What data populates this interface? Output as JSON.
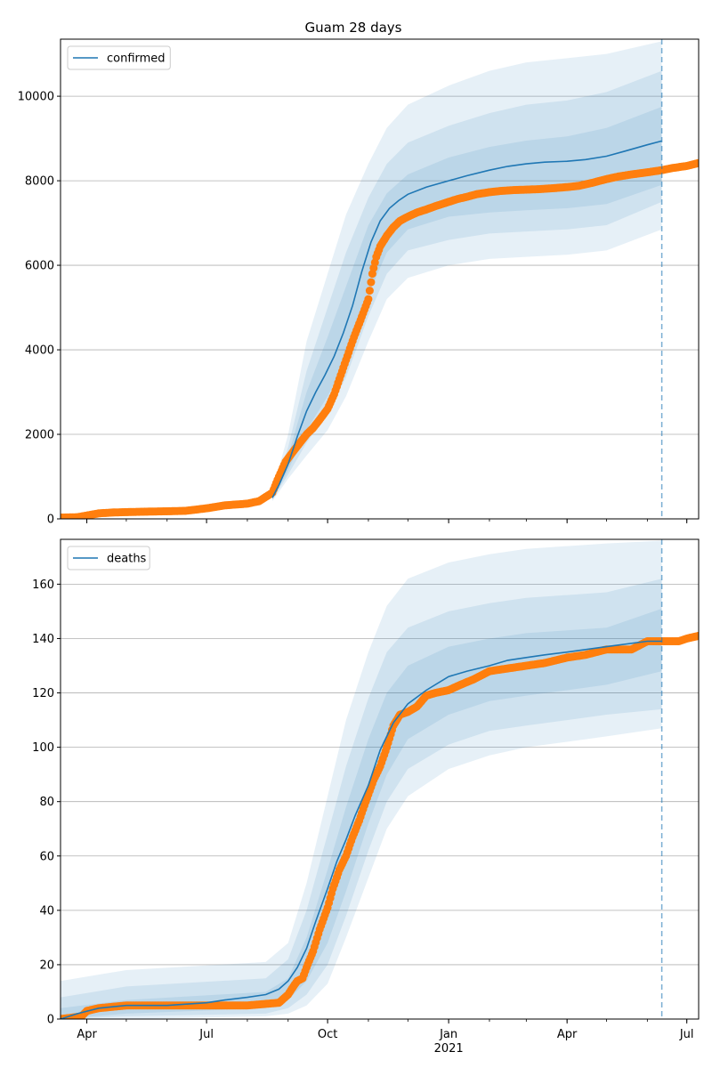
{
  "title": "Guam 28 days",
  "colors": {
    "model": "#1f77b4",
    "observed": "#ff7f0e",
    "band": "#1f77b4",
    "grid": "#b0b0b0",
    "axis": "#000000",
    "cutoff": "#1f77b4"
  },
  "chart_data": [
    {
      "type": "line",
      "legend": "confirmed",
      "legend_position": "top-left",
      "grid": "y",
      "xlim": [
        "2020-03-12",
        "2021-07-10"
      ],
      "ylim": [
        0,
        11350
      ],
      "yticks": [
        0,
        2000,
        4000,
        6000,
        8000,
        10000
      ],
      "cutoff_date": "2021-06-12",
      "model_line": {
        "x": [
          "2020-08-20",
          "2020-08-25",
          "2020-09-01",
          "2020-09-08",
          "2020-09-15",
          "2020-09-22",
          "2020-09-29",
          "2020-10-06",
          "2020-10-13",
          "2020-10-20",
          "2020-10-27",
          "2020-11-03",
          "2020-11-10",
          "2020-11-17",
          "2020-11-24",
          "2020-12-01",
          "2020-12-15",
          "2021-01-01",
          "2021-01-15",
          "2021-02-01",
          "2021-02-15",
          "2021-03-01",
          "2021-03-15",
          "2021-04-01",
          "2021-04-15",
          "2021-05-01",
          "2021-05-15",
          "2021-06-01",
          "2021-06-12"
        ],
        "y": [
          500,
          800,
          1300,
          1950,
          2550,
          3000,
          3400,
          3850,
          4400,
          5050,
          5850,
          6550,
          7050,
          7350,
          7530,
          7680,
          7850,
          8000,
          8120,
          8250,
          8340,
          8400,
          8440,
          8460,
          8500,
          8580,
          8700,
          8850,
          8940
        ]
      },
      "bands": [
        {
          "x": [
            "2020-08-20",
            "2020-09-01",
            "2020-09-15",
            "2020-10-01",
            "2020-10-15",
            "2020-11-01",
            "2020-11-15",
            "2020-12-01",
            "2021-01-01",
            "2021-02-01",
            "2021-03-01",
            "2021-04-01",
            "2021-05-01",
            "2021-06-12"
          ],
          "lower": [
            420,
            950,
            1500,
            2100,
            2900,
            4200,
            5200,
            5700,
            6000,
            6150,
            6200,
            6250,
            6350,
            6850
          ],
          "upper": [
            650,
            2000,
            4200,
            5800,
            7200,
            8400,
            9250,
            9800,
            10250,
            10600,
            10800,
            10900,
            11000,
            11300
          ]
        },
        {
          "x": [
            "2020-08-20",
            "2020-09-01",
            "2020-09-15",
            "2020-10-01",
            "2020-10-15",
            "2020-11-01",
            "2020-11-15",
            "2020-12-01",
            "2021-01-01",
            "2021-02-01",
            "2021-03-01",
            "2021-04-01",
            "2021-05-01",
            "2021-06-12"
          ],
          "lower": [
            450,
            1050,
            1800,
            2500,
            3350,
            4800,
            5800,
            6350,
            6600,
            6750,
            6800,
            6850,
            6950,
            7500
          ],
          "upper": [
            600,
            1700,
            3500,
            5000,
            6300,
            7600,
            8400,
            8900,
            9300,
            9600,
            9800,
            9900,
            10100,
            10600
          ]
        },
        {
          "x": [
            "2020-08-20",
            "2020-09-01",
            "2020-09-15",
            "2020-10-01",
            "2020-10-15",
            "2020-11-01",
            "2020-11-15",
            "2020-12-01",
            "2021-01-01",
            "2021-02-01",
            "2021-03-01",
            "2021-04-01",
            "2021-05-01",
            "2021-06-12"
          ],
          "lower": [
            470,
            1150,
            2100,
            2900,
            3750,
            5300,
            6300,
            6850,
            7150,
            7250,
            7300,
            7350,
            7450,
            7900
          ],
          "upper": [
            560,
            1500,
            3000,
            4300,
            5500,
            6950,
            7700,
            8150,
            8550,
            8800,
            8950,
            9050,
            9250,
            9750
          ]
        }
      ],
      "observed": {
        "x": [
          "2020-03-12",
          "2020-03-25",
          "2020-04-01",
          "2020-04-10",
          "2020-04-20",
          "2020-05-01",
          "2020-05-15",
          "2020-06-01",
          "2020-06-15",
          "2020-07-01",
          "2020-07-15",
          "2020-08-01",
          "2020-08-10",
          "2020-08-20",
          "2020-08-25",
          "2020-08-30",
          "2020-09-05",
          "2020-09-10",
          "2020-09-15",
          "2020-09-20",
          "2020-09-25",
          "2020-10-01",
          "2020-10-06",
          "2020-10-11",
          "2020-10-16",
          "2020-10-21",
          "2020-10-26",
          "2020-11-01",
          "2020-11-04",
          "2020-11-07",
          "2020-11-10",
          "2020-11-15",
          "2020-11-20",
          "2020-11-25",
          "2020-12-01",
          "2020-12-08",
          "2020-12-15",
          "2020-12-22",
          "2021-01-01",
          "2021-01-08",
          "2021-01-15",
          "2021-01-22",
          "2021-02-01",
          "2021-02-10",
          "2021-02-20",
          "2021-03-01",
          "2021-03-10",
          "2021-03-20",
          "2021-04-01",
          "2021-04-10",
          "2021-04-20",
          "2021-05-01",
          "2021-05-10",
          "2021-05-20",
          "2021-06-01",
          "2021-06-12",
          "2021-06-20",
          "2021-07-01",
          "2021-07-10"
        ],
        "y": [
          30,
          40,
          80,
          130,
          150,
          160,
          170,
          180,
          190,
          250,
          320,
          360,
          420,
          620,
          1000,
          1350,
          1600,
          1800,
          2000,
          2150,
          2350,
          2600,
          2950,
          3400,
          3850,
          4300,
          4700,
          5200,
          5800,
          6200,
          6450,
          6700,
          6900,
          7050,
          7150,
          7250,
          7320,
          7400,
          7500,
          7570,
          7620,
          7680,
          7730,
          7760,
          7780,
          7790,
          7800,
          7820,
          7850,
          7880,
          7950,
          8040,
          8100,
          8150,
          8200,
          8250,
          8300,
          8350,
          8420
        ]
      }
    },
    {
      "type": "line",
      "legend": "deaths",
      "legend_position": "top-left",
      "grid": "y",
      "xlim": [
        "2020-03-12",
        "2021-07-10"
      ],
      "ylim": [
        0,
        176.5
      ],
      "yticks": [
        0,
        20,
        40,
        60,
        80,
        100,
        120,
        140,
        160
      ],
      "xticks": [
        "Apr",
        "Jul",
        "Oct",
        "Jan",
        "Apr",
        "Jul"
      ],
      "xtick_dates": [
        "2020-04-01",
        "2020-07-01",
        "2020-10-01",
        "2021-01-01",
        "2021-04-01",
        "2021-07-01"
      ],
      "xtick_year": "2021",
      "cutoff_date": "2021-06-12",
      "model_line": {
        "x": [
          "2020-03-12",
          "2020-03-25",
          "2020-04-10",
          "2020-05-01",
          "2020-06-01",
          "2020-07-01",
          "2020-07-15",
          "2020-08-01",
          "2020-08-15",
          "2020-08-25",
          "2020-09-01",
          "2020-09-08",
          "2020-09-15",
          "2020-09-22",
          "2020-10-01",
          "2020-10-08",
          "2020-10-15",
          "2020-10-22",
          "2020-11-01",
          "2020-11-10",
          "2020-11-20",
          "2020-12-01",
          "2020-12-15",
          "2021-01-01",
          "2021-01-15",
          "2021-02-01",
          "2021-02-15",
          "2021-03-01",
          "2021-03-15",
          "2021-04-01",
          "2021-05-01",
          "2021-06-01",
          "2021-06-12"
        ],
        "y": [
          0,
          2,
          4,
          5,
          5,
          6,
          7,
          8,
          9,
          11,
          14,
          19,
          26,
          36,
          48,
          58,
          66,
          75,
          86,
          99,
          109,
          116,
          121,
          126,
          128,
          130,
          132,
          133,
          134,
          135,
          137,
          139,
          139
        ]
      },
      "bands": [
        {
          "x": [
            "2020-03-12",
            "2020-05-01",
            "2020-08-15",
            "2020-09-01",
            "2020-09-15",
            "2020-10-01",
            "2020-10-15",
            "2020-11-01",
            "2020-11-15",
            "2020-12-01",
            "2021-01-01",
            "2021-02-01",
            "2021-03-01",
            "2021-04-01",
            "2021-05-01",
            "2021-06-12"
          ],
          "lower": [
            0,
            0,
            1,
            2,
            5,
            13,
            30,
            52,
            70,
            82,
            92,
            97,
            100,
            102,
            104,
            107
          ],
          "upper": [
            14,
            18,
            21,
            28,
            50,
            82,
            110,
            135,
            152,
            162,
            168,
            171,
            173,
            174,
            175,
            176
          ]
        },
        {
          "x": [
            "2020-03-12",
            "2020-05-01",
            "2020-08-15",
            "2020-09-01",
            "2020-09-15",
            "2020-10-01",
            "2020-10-15",
            "2020-11-01",
            "2020-11-15",
            "2020-12-01",
            "2021-01-01",
            "2021-02-01",
            "2021-03-01",
            "2021-04-01",
            "2021-05-01",
            "2021-06-12"
          ],
          "lower": [
            0,
            1,
            2,
            4,
            9,
            20,
            38,
            62,
            80,
            92,
            101,
            106,
            108,
            110,
            112,
            114
          ],
          "upper": [
            8,
            12,
            15,
            22,
            40,
            68,
            93,
            118,
            135,
            144,
            150,
            153,
            155,
            156,
            157,
            162
          ]
        },
        {
          "x": [
            "2020-03-12",
            "2020-05-01",
            "2020-08-15",
            "2020-09-01",
            "2020-09-15",
            "2020-10-01",
            "2020-10-15",
            "2020-11-01",
            "2020-11-15",
            "2020-12-01",
            "2021-01-01",
            "2021-02-01",
            "2021-03-01",
            "2021-04-01",
            "2021-05-01",
            "2021-06-12"
          ],
          "lower": [
            0,
            2,
            4,
            7,
            14,
            28,
            47,
            72,
            90,
            103,
            112,
            117,
            119,
            121,
            123,
            128
          ],
          "upper": [
            4,
            7,
            10,
            15,
            30,
            55,
            78,
            103,
            120,
            130,
            137,
            140,
            142,
            143,
            144,
            151
          ]
        }
      ],
      "observed": {
        "x": [
          "2020-03-12",
          "2020-03-28",
          "2020-04-01",
          "2020-04-10",
          "2020-05-01",
          "2020-06-01",
          "2020-07-01",
          "2020-08-01",
          "2020-08-25",
          "2020-09-01",
          "2020-09-05",
          "2020-09-08",
          "2020-09-12",
          "2020-09-15",
          "2020-09-20",
          "2020-09-25",
          "2020-10-01",
          "2020-10-05",
          "2020-10-10",
          "2020-10-15",
          "2020-10-20",
          "2020-10-25",
          "2020-10-30",
          "2020-11-05",
          "2020-11-10",
          "2020-11-15",
          "2020-11-20",
          "2020-11-25",
          "2020-12-01",
          "2020-12-08",
          "2020-12-15",
          "2020-12-22",
          "2021-01-01",
          "2021-01-10",
          "2021-01-20",
          "2021-02-01",
          "2021-02-15",
          "2021-03-01",
          "2021-03-15",
          "2021-04-01",
          "2021-04-15",
          "2021-05-01",
          "2021-05-10",
          "2021-05-20",
          "2021-06-01",
          "2021-06-15",
          "2021-06-25",
          "2021-07-01",
          "2021-07-10"
        ],
        "y": [
          0,
          1,
          3,
          4,
          5,
          5,
          5,
          5,
          6,
          9,
          12,
          14,
          15,
          19,
          25,
          33,
          41,
          48,
          55,
          60,
          67,
          73,
          80,
          88,
          93,
          100,
          108,
          112,
          113,
          115,
          119,
          120,
          121,
          123,
          125,
          128,
          129,
          130,
          131,
          133,
          134,
          136,
          136,
          136,
          139,
          139,
          139,
          140,
          141
        ]
      }
    }
  ]
}
